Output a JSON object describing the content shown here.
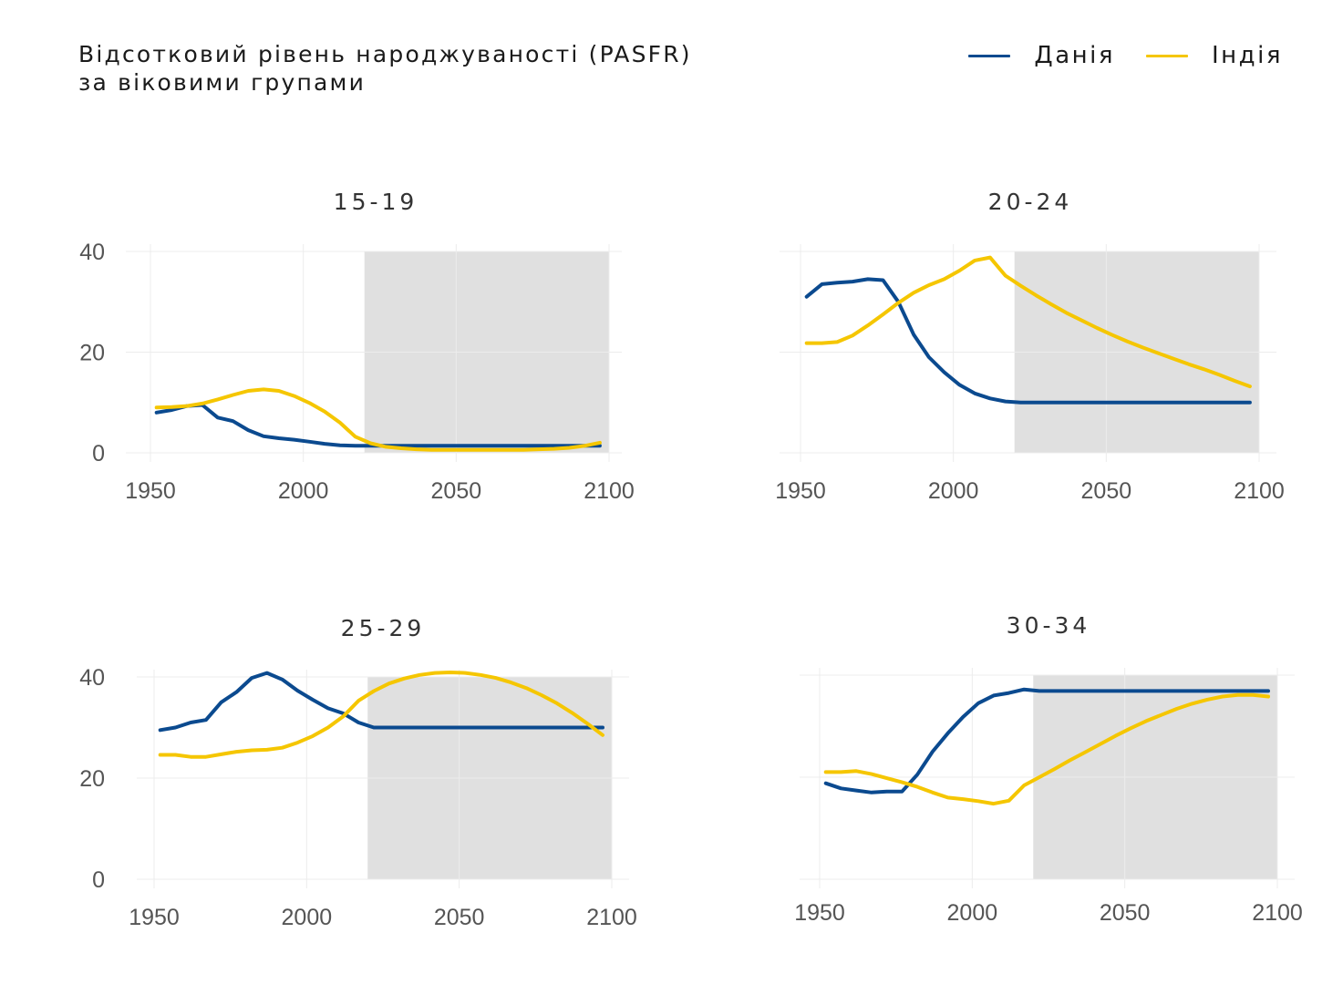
{
  "title": {
    "line1": "Відсотковий рівень народжуваності (PASFR)",
    "line2": "за віковими групами"
  },
  "legend": [
    {
      "label": "Данія",
      "color": "#0b4a8f"
    },
    {
      "label": "Індія",
      "color": "#f5c600"
    }
  ],
  "projection_shade": {
    "from": 2020,
    "to": 2100,
    "color": "#e0e0e0"
  },
  "chart_data": [
    {
      "type": "line",
      "title": "15-19",
      "xlim": [
        1950,
        2100
      ],
      "ylim": [
        0,
        40
      ],
      "x_ticks": [
        1950,
        2000,
        2050,
        2100
      ],
      "y_ticks": [
        0,
        20,
        40
      ],
      "show_y_labels": true,
      "series": [
        {
          "name": "Данія",
          "x": [
            1952,
            1957,
            1962,
            1967,
            1972,
            1977,
            1982,
            1987,
            1992,
            1997,
            2002,
            2007,
            2012,
            2017,
            2022,
            2027,
            2032,
            2037,
            2042,
            2047,
            2052,
            2057,
            2062,
            2067,
            2072,
            2077,
            2082,
            2087,
            2092,
            2097
          ],
          "values": [
            8.0,
            8.5,
            9.3,
            9.5,
            7.0,
            6.3,
            4.5,
            3.3,
            2.9,
            2.6,
            2.2,
            1.8,
            1.5,
            1.4,
            1.4,
            1.4,
            1.4,
            1.4,
            1.4,
            1.4,
            1.4,
            1.4,
            1.4,
            1.4,
            1.4,
            1.4,
            1.4,
            1.4,
            1.4,
            1.4
          ]
        },
        {
          "name": "Індія",
          "x": [
            1952,
            1957,
            1962,
            1967,
            1972,
            1977,
            1982,
            1987,
            1992,
            1997,
            2002,
            2007,
            2012,
            2017,
            2022,
            2027,
            2032,
            2037,
            2042,
            2047,
            2052,
            2057,
            2062,
            2067,
            2072,
            2077,
            2082,
            2087,
            2092,
            2097
          ],
          "values": [
            9.0,
            9.1,
            9.3,
            9.8,
            10.6,
            11.5,
            12.3,
            12.6,
            12.3,
            11.3,
            9.9,
            8.2,
            6.0,
            3.2,
            1.9,
            1.2,
            0.9,
            0.7,
            0.6,
            0.6,
            0.6,
            0.6,
            0.6,
            0.6,
            0.6,
            0.7,
            0.8,
            1.0,
            1.4,
            2.0
          ]
        }
      ]
    },
    {
      "type": "line",
      "title": "20-24",
      "xlim": [
        1950,
        2100
      ],
      "ylim": [
        0,
        40
      ],
      "x_ticks": [
        1950,
        2000,
        2050,
        2100
      ],
      "y_ticks": [
        0,
        20,
        40
      ],
      "show_y_labels": false,
      "series": [
        {
          "name": "Данія",
          "x": [
            1952,
            1957,
            1962,
            1967,
            1972,
            1977,
            1982,
            1987,
            1992,
            1997,
            2002,
            2007,
            2012,
            2017,
            2022,
            2032,
            2042,
            2052,
            2062,
            2072,
            2082,
            2092,
            2097
          ],
          "values": [
            31.0,
            33.5,
            33.8,
            34.0,
            34.5,
            34.3,
            30.0,
            23.5,
            19.0,
            16.0,
            13.5,
            11.8,
            10.8,
            10.2,
            10.0,
            10.0,
            10.0,
            10.0,
            10.0,
            10.0,
            10.0,
            10.0,
            10.0
          ]
        },
        {
          "name": "Індія",
          "x": [
            1952,
            1957,
            1962,
            1967,
            1972,
            1977,
            1982,
            1987,
            1992,
            1997,
            2002,
            2007,
            2012,
            2017,
            2022,
            2027,
            2032,
            2037,
            2042,
            2047,
            2052,
            2057,
            2062,
            2067,
            2072,
            2077,
            2082,
            2087,
            2092,
            2097
          ],
          "values": [
            21.8,
            21.8,
            22.0,
            23.3,
            25.3,
            27.5,
            29.8,
            31.8,
            33.3,
            34.5,
            36.2,
            38.2,
            38.8,
            35.2,
            33.2,
            31.3,
            29.5,
            27.8,
            26.3,
            24.8,
            23.4,
            22.1,
            20.9,
            19.8,
            18.7,
            17.6,
            16.6,
            15.5,
            14.3,
            13.2
          ]
        }
      ]
    },
    {
      "type": "line",
      "title": "25-29",
      "xlim": [
        1950,
        2100
      ],
      "ylim": [
        0,
        40
      ],
      "x_ticks": [
        1950,
        2000,
        2050,
        2100
      ],
      "y_ticks": [
        0,
        20,
        40
      ],
      "show_y_labels": true,
      "series": [
        {
          "name": "Данія",
          "x": [
            1952,
            1957,
            1962,
            1967,
            1972,
            1977,
            1982,
            1987,
            1992,
            1997,
            2002,
            2007,
            2012,
            2017,
            2022,
            2032,
            2042,
            2052,
            2062,
            2072,
            2082,
            2092,
            2097
          ],
          "values": [
            29.5,
            30.0,
            31.0,
            31.5,
            35.0,
            37.0,
            39.8,
            40.8,
            39.5,
            37.3,
            35.5,
            33.8,
            32.8,
            31.0,
            30.0,
            30.0,
            30.0,
            30.0,
            30.0,
            30.0,
            30.0,
            30.0,
            30.0
          ]
        },
        {
          "name": "Індія",
          "x": [
            1952,
            1957,
            1962,
            1967,
            1972,
            1977,
            1982,
            1987,
            1992,
            1997,
            2002,
            2007,
            2012,
            2017,
            2022,
            2027,
            2032,
            2037,
            2042,
            2047,
            2052,
            2057,
            2062,
            2067,
            2072,
            2077,
            2082,
            2087,
            2092,
            2097
          ],
          "values": [
            24.6,
            24.6,
            24.2,
            24.2,
            24.7,
            25.2,
            25.5,
            25.6,
            26.0,
            27.0,
            28.3,
            30.0,
            32.2,
            35.3,
            37.2,
            38.7,
            39.7,
            40.4,
            40.8,
            40.9,
            40.8,
            40.4,
            39.8,
            38.9,
            37.8,
            36.4,
            34.8,
            32.9,
            30.8,
            28.5
          ]
        }
      ]
    },
    {
      "type": "line",
      "title": "30-34",
      "xlim": [
        1950,
        2100
      ],
      "ylim": [
        0,
        40
      ],
      "x_ticks": [
        1950,
        2000,
        2050,
        2100
      ],
      "y_ticks": [
        0,
        20,
        40
      ],
      "show_y_labels": false,
      "series": [
        {
          "name": "Данія",
          "x": [
            1952,
            1957,
            1962,
            1967,
            1972,
            1977,
            1982,
            1987,
            1992,
            1997,
            2002,
            2007,
            2012,
            2017,
            2022,
            2032,
            2042,
            2052,
            2062,
            2072,
            2082,
            2092,
            2097
          ],
          "values": [
            18.8,
            17.8,
            17.4,
            17.0,
            17.2,
            17.2,
            20.5,
            25.0,
            28.6,
            31.8,
            34.5,
            36.0,
            36.5,
            37.2,
            36.9,
            36.9,
            36.9,
            36.9,
            36.9,
            36.9,
            36.9,
            36.9,
            36.9
          ]
        },
        {
          "name": "Індія",
          "x": [
            1952,
            1957,
            1962,
            1967,
            1972,
            1977,
            1982,
            1987,
            1992,
            1997,
            2002,
            2007,
            2012,
            2017,
            2022,
            2027,
            2032,
            2037,
            2042,
            2047,
            2052,
            2057,
            2062,
            2067,
            2072,
            2077,
            2082,
            2087,
            2092,
            2097
          ],
          "values": [
            21.0,
            21.0,
            21.2,
            20.6,
            19.8,
            19.0,
            18.1,
            17.0,
            16.0,
            15.7,
            15.3,
            14.8,
            15.4,
            18.4,
            20.0,
            21.6,
            23.3,
            24.9,
            26.5,
            28.1,
            29.6,
            31.0,
            32.2,
            33.4,
            34.4,
            35.2,
            35.8,
            36.1,
            36.1,
            35.8
          ]
        }
      ]
    }
  ]
}
